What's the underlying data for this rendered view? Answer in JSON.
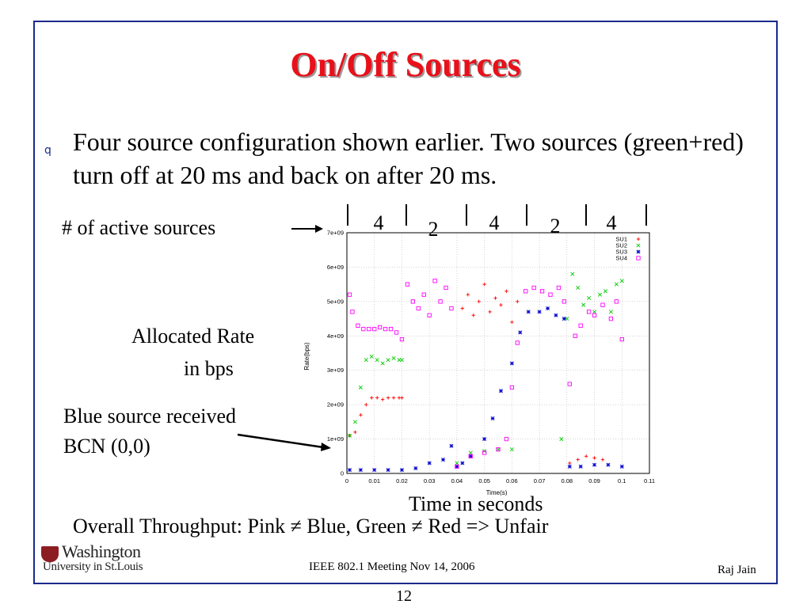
{
  "slide": {
    "title": "On/Off Sources",
    "bullet_marker": "q",
    "bullet_text": "Four source configuration shown earlier. Two sources (green+red) turn off at 20 ms and back on after 20 ms.",
    "label_active_sources": "# of active sources",
    "label_allocated_rate_1": "Allocated Rate",
    "label_allocated_rate_2": "in bps",
    "label_blue_1": "Blue source received",
    "label_blue_2": "BCN (0,0)",
    "caption_time": "Time in seconds",
    "overall_throughput": "Overall Throughput: Pink ≠ Blue, Green ≠ Red => Unfair",
    "segment_counts": [
      "4",
      "2",
      "4",
      "2",
      "4"
    ],
    "footer_center": "IEEE 802.1 Meeting  Nov 14, 2006",
    "footer_right": "Raj Jain",
    "page_number": "12",
    "logo_line1": "Washington",
    "logo_line2": "University in St.Louis"
  },
  "chart_data": {
    "type": "scatter",
    "xlabel": "Time(s)",
    "ylabel": "Rate(bps)",
    "xlim": [
      0,
      0.11
    ],
    "ylim": [
      0,
      7000000000
    ],
    "x_ticks": [
      0,
      0.01,
      0.02,
      0.03,
      0.04,
      0.05,
      0.06,
      0.07,
      0.08,
      0.09,
      0.1,
      0.11
    ],
    "x_tick_labels": [
      "0",
      "0.01",
      "0.02",
      "0.03",
      "0.04",
      "0.05",
      "0.06",
      "0.07",
      "0.08",
      "0.09",
      "0.1",
      "0.11"
    ],
    "y_ticks": [
      0,
      1000000000,
      2000000000,
      3000000000,
      4000000000,
      5000000000,
      6000000000,
      7000000000
    ],
    "y_tick_labels": [
      "0",
      "1e+09",
      "2e+09",
      "3e+09",
      "4e+09",
      "5e+09",
      "6e+09",
      "7e+09"
    ],
    "grid": true,
    "legend_position": "top-right",
    "series": [
      {
        "name": "SU1",
        "color": "#ff0000",
        "marker": "plus",
        "points": [
          [
            0.001,
            1100000000
          ],
          [
            0.003,
            1200000000
          ],
          [
            0.005,
            1700000000
          ],
          [
            0.007,
            2000000000
          ],
          [
            0.009,
            2200000000
          ],
          [
            0.011,
            2200000000
          ],
          [
            0.013,
            2150000000
          ],
          [
            0.015,
            2200000000
          ],
          [
            0.017,
            2200000000
          ],
          [
            0.019,
            2200000000
          ],
          [
            0.02,
            2200000000
          ],
          [
            0.042,
            4800000000
          ],
          [
            0.044,
            5200000000
          ],
          [
            0.046,
            4600000000
          ],
          [
            0.048,
            5000000000
          ],
          [
            0.05,
            5500000000
          ],
          [
            0.052,
            4700000000
          ],
          [
            0.054,
            5100000000
          ],
          [
            0.056,
            4900000000
          ],
          [
            0.058,
            5300000000
          ],
          [
            0.06,
            4400000000
          ],
          [
            0.062,
            5000000000
          ],
          [
            0.081,
            300000000
          ],
          [
            0.084,
            400000000
          ],
          [
            0.087,
            500000000
          ],
          [
            0.09,
            450000000
          ],
          [
            0.093,
            400000000
          ]
        ]
      },
      {
        "name": "SU2",
        "color": "#00cc00",
        "marker": "cross",
        "points": [
          [
            0.001,
            1100000000
          ],
          [
            0.003,
            1500000000
          ],
          [
            0.005,
            2500000000
          ],
          [
            0.007,
            3300000000
          ],
          [
            0.009,
            3400000000
          ],
          [
            0.011,
            3300000000
          ],
          [
            0.013,
            3200000000
          ],
          [
            0.015,
            3300000000
          ],
          [
            0.017,
            3350000000
          ],
          [
            0.019,
            3300000000
          ],
          [
            0.02,
            3300000000
          ],
          [
            0.04,
            300000000
          ],
          [
            0.045,
            600000000
          ],
          [
            0.05,
            650000000
          ],
          [
            0.055,
            700000000
          ],
          [
            0.06,
            700000000
          ],
          [
            0.078,
            1000000000
          ],
          [
            0.08,
            4500000000
          ],
          [
            0.082,
            5800000000
          ],
          [
            0.084,
            5400000000
          ],
          [
            0.086,
            4900000000
          ],
          [
            0.088,
            5100000000
          ],
          [
            0.09,
            4700000000
          ],
          [
            0.092,
            5200000000
          ],
          [
            0.094,
            5300000000
          ],
          [
            0.096,
            4700000000
          ],
          [
            0.098,
            5500000000
          ],
          [
            0.1,
            5600000000
          ]
        ]
      },
      {
        "name": "SU3",
        "color": "#0000cc",
        "marker": "star",
        "points": [
          [
            0.001,
            100000000
          ],
          [
            0.005,
            100000000
          ],
          [
            0.01,
            100000000
          ],
          [
            0.015,
            100000000
          ],
          [
            0.02,
            100000000
          ],
          [
            0.025,
            150000000
          ],
          [
            0.03,
            300000000
          ],
          [
            0.035,
            400000000
          ],
          [
            0.038,
            800000000
          ],
          [
            0.04,
            200000000
          ],
          [
            0.042,
            300000000
          ],
          [
            0.045,
            500000000
          ],
          [
            0.05,
            1000000000
          ],
          [
            0.053,
            1600000000
          ],
          [
            0.056,
            2400000000
          ],
          [
            0.06,
            3200000000
          ],
          [
            0.063,
            4100000000
          ],
          [
            0.066,
            4700000000
          ],
          [
            0.07,
            4700000000
          ],
          [
            0.073,
            4800000000
          ],
          [
            0.076,
            4600000000
          ],
          [
            0.079,
            4500000000
          ],
          [
            0.081,
            200000000
          ],
          [
            0.085,
            200000000
          ],
          [
            0.09,
            250000000
          ],
          [
            0.095,
            250000000
          ],
          [
            0.1,
            200000000
          ]
        ]
      },
      {
        "name": "SU4",
        "color": "#ff00ff",
        "marker": "square",
        "points": [
          [
            0.001,
            5200000000
          ],
          [
            0.002,
            4700000000
          ],
          [
            0.004,
            4300000000
          ],
          [
            0.006,
            4200000000
          ],
          [
            0.008,
            4200000000
          ],
          [
            0.01,
            4200000000
          ],
          [
            0.012,
            4250000000
          ],
          [
            0.014,
            4200000000
          ],
          [
            0.016,
            4200000000
          ],
          [
            0.018,
            4100000000
          ],
          [
            0.02,
            3900000000
          ],
          [
            0.022,
            5500000000
          ],
          [
            0.024,
            5000000000
          ],
          [
            0.026,
            4800000000
          ],
          [
            0.028,
            5200000000
          ],
          [
            0.03,
            4600000000
          ],
          [
            0.032,
            5600000000
          ],
          [
            0.034,
            5000000000
          ],
          [
            0.036,
            5400000000
          ],
          [
            0.038,
            4800000000
          ],
          [
            0.04,
            200000000
          ],
          [
            0.045,
            500000000
          ],
          [
            0.05,
            600000000
          ],
          [
            0.055,
            700000000
          ],
          [
            0.058,
            1000000000
          ],
          [
            0.06,
            2500000000
          ],
          [
            0.062,
            3800000000
          ],
          [
            0.065,
            5300000000
          ],
          [
            0.068,
            5400000000
          ],
          [
            0.071,
            5300000000
          ],
          [
            0.074,
            5200000000
          ],
          [
            0.077,
            5400000000
          ],
          [
            0.079,
            5000000000
          ],
          [
            0.081,
            2600000000
          ],
          [
            0.083,
            4000000000
          ],
          [
            0.085,
            4300000000
          ],
          [
            0.088,
            4700000000
          ],
          [
            0.09,
            4600000000
          ],
          [
            0.093,
            4900000000
          ],
          [
            0.096,
            4500000000
          ],
          [
            0.098,
            5000000000
          ],
          [
            0.1,
            3900000000
          ]
        ]
      }
    ]
  }
}
